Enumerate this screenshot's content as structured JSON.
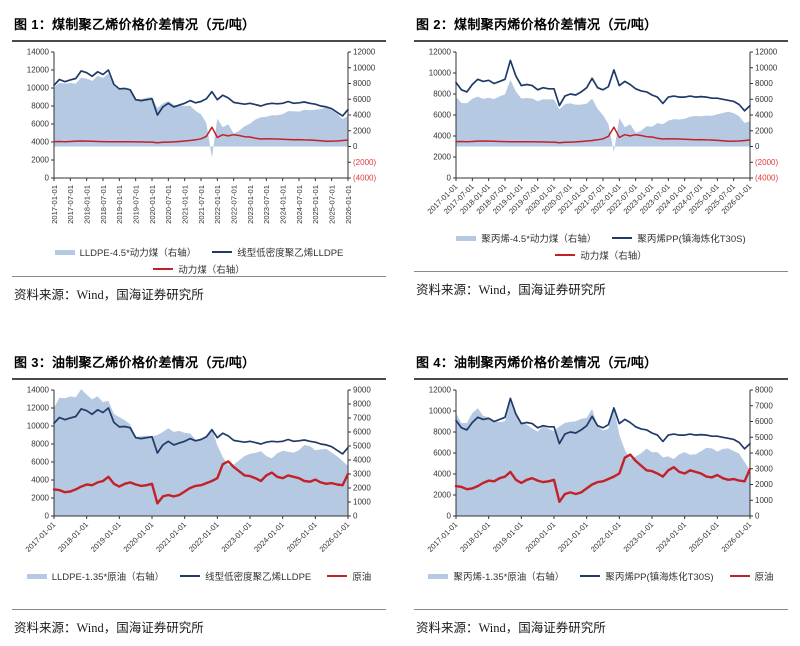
{
  "page": {
    "background": "#ffffff"
  },
  "colors": {
    "area": "#b6c9e2",
    "navy": "#1f3a68",
    "red": "#c22127",
    "axis": "#333333",
    "tick_text": "#333333",
    "negative_tick_text": "#e03b3b",
    "title_text": "#000000",
    "rule_dark": "#4a4a4a",
    "rule_light": "#8a8a8a"
  },
  "figures": [
    {
      "title": "图 1：煤制聚乙烯价格价差情况（元/吨）",
      "source": "资料来源：Wind，国海证券研究所"
    },
    {
      "title": "图 2：煤制聚丙烯价格价差情况（元/吨）",
      "source": "资料来源：Wind，国海证券研究所"
    },
    {
      "title": "图 3：油制聚乙烯价格价差情况（元/吨）",
      "source": "资料来源：Wind，国海证券研究所"
    },
    {
      "title": "图 4：油制聚丙烯价格价差情况（元/吨）",
      "source": "资料来源：Wind，国海证券研究所"
    }
  ],
  "chart_data": [
    {
      "type": "area+line combo",
      "title": "图 1：煤制聚乙烯价格价差情况（元/吨）",
      "x_unit": "months since 2017-01",
      "x": [
        0,
        2,
        4,
        6,
        8,
        10,
        12,
        14,
        16,
        18,
        20,
        22,
        24,
        26,
        28,
        30,
        32,
        34,
        36,
        38,
        40,
        42,
        44,
        46,
        48,
        50,
        52,
        54,
        56,
        58,
        60,
        62,
        64,
        66,
        68,
        70,
        72,
        74,
        76,
        78,
        80,
        82,
        84,
        86,
        88,
        90,
        92,
        94,
        96,
        98,
        100,
        102,
        104,
        106,
        108
      ],
      "x_tick_step_months": 6,
      "x_label_rotation": 90,
      "x_tick_labels": [
        "2017-01-01",
        "2017-07-01",
        "2018-01-01",
        "2018-07-01",
        "2019-01-01",
        "2019-07-01",
        "2020-01-01",
        "2020-07-01",
        "2021-01-01",
        "2021-07-01",
        "2022-01-01",
        "2022-07-01",
        "2023-01-01",
        "2023-07-01",
        "2024-01-01",
        "2024-07-01",
        "2025-01-01",
        "2025-07-01",
        "2026-01-01"
      ],
      "left_axis": {
        "labels": [
          "0",
          "2000",
          "4000",
          "6000",
          "8000",
          "10000",
          "12000",
          "14000"
        ]
      },
      "right_axis": {
        "labels": [
          "(4000)",
          "(2000)",
          "0",
          "2000",
          "4000",
          "6000",
          "8000",
          "10000",
          "12000"
        ]
      },
      "series": [
        {
          "name": "LLDPE-4.5*动力煤（右轴）",
          "type": "area",
          "axis": "right",
          "color": "area",
          "spread_of": [
            1,
            2
          ],
          "multiplier": 4.5
        },
        {
          "name": "线型低密度聚乙烯LLDPE",
          "type": "line",
          "axis": "left",
          "color": "navy",
          "width": 1.7,
          "values": [
            10300,
            10950,
            10700,
            10900,
            11050,
            11900,
            11700,
            11300,
            11800,
            11500,
            12000,
            10400,
            9900,
            9950,
            9800,
            8700,
            8600,
            8700,
            8800,
            7000,
            7900,
            8300,
            7900,
            8100,
            8300,
            8600,
            8350,
            8500,
            8800,
            9600,
            8700,
            9200,
            8900,
            8400,
            8300,
            8200,
            8300,
            8150,
            8000,
            8200,
            8300,
            8250,
            8300,
            8500,
            8300,
            8350,
            8450,
            8300,
            8200,
            8000,
            7900,
            7700,
            7300,
            6900,
            7600
          ]
        },
        {
          "name": "动力煤（右轴）",
          "type": "line",
          "axis": "right",
          "color": "red",
          "width": 1.5,
          "values": [
            620,
            640,
            600,
            630,
            680,
            700,
            690,
            660,
            630,
            620,
            610,
            600,
            600,
            610,
            600,
            590,
            580,
            560,
            560,
            480,
            540,
            560,
            580,
            640,
            700,
            760,
            850,
            980,
            1300,
            2450,
            1150,
            1500,
            1350,
            1500,
            1400,
            1250,
            1200,
            1050,
            950,
            980,
            960,
            950,
            930,
            890,
            850,
            870,
            840,
            820,
            780,
            720,
            660,
            680,
            700,
            760,
            820
          ]
        }
      ],
      "legend_rows": [
        [
          0,
          1
        ],
        [
          2
        ]
      ]
    },
    {
      "type": "area+line combo",
      "title": "图 2：煤制聚丙烯价格价差情况（元/吨）",
      "x_unit": "months since 2017-01",
      "x": [
        0,
        2,
        4,
        6,
        8,
        10,
        12,
        14,
        16,
        18,
        20,
        22,
        24,
        26,
        28,
        30,
        32,
        34,
        36,
        38,
        40,
        42,
        44,
        46,
        48,
        50,
        52,
        54,
        56,
        58,
        60,
        62,
        64,
        66,
        68,
        70,
        72,
        74,
        76,
        78,
        80,
        82,
        84,
        86,
        88,
        90,
        92,
        94,
        96,
        98,
        100,
        102,
        104,
        106,
        108
      ],
      "x_tick_step_months": 6,
      "x_label_rotation": 45,
      "x_tick_labels": [
        "2017-01-01",
        "2017-07-01",
        "2018-01-01",
        "2018-07-01",
        "2019-01-01",
        "2019-07-01",
        "2020-01-01",
        "2020-07-01",
        "2021-01-01",
        "2021-07-01",
        "2022-01-01",
        "2022-07-01",
        "2023-01-01",
        "2023-07-01",
        "2024-01-01",
        "2024-07-01",
        "2025-01-01",
        "2025-07-01",
        "2026-01-01"
      ],
      "left_axis": {
        "labels": [
          "0",
          "2000",
          "4000",
          "6000",
          "8000",
          "10000",
          "12000"
        ]
      },
      "right_axis": {
        "labels": [
          "(4000)",
          "(2000)",
          "0",
          "2000",
          "4000",
          "6000",
          "8000",
          "10000",
          "12000"
        ]
      },
      "series": [
        {
          "name": "聚丙烯-4.5*动力煤（右轴）",
          "type": "area",
          "axis": "right",
          "color": "area",
          "spread_of": [
            1,
            2
          ],
          "multiplier": 4.5
        },
        {
          "name": "聚丙烯PP(镇海炼化T30S)",
          "type": "line",
          "axis": "left",
          "color": "navy",
          "width": 1.7,
          "values": [
            9100,
            8400,
            8200,
            8900,
            9400,
            9200,
            9300,
            9000,
            9200,
            9400,
            11200,
            9700,
            8800,
            8900,
            8800,
            8400,
            8600,
            8500,
            8500,
            6900,
            7800,
            8000,
            7900,
            8200,
            8600,
            9500,
            8600,
            8400,
            8700,
            10300,
            8800,
            9200,
            8900,
            8500,
            8300,
            8200,
            7900,
            7700,
            7100,
            7700,
            7800,
            7700,
            7700,
            7800,
            7700,
            7750,
            7700,
            7600,
            7600,
            7500,
            7400,
            7300,
            7000,
            6400,
            6900
          ]
        },
        {
          "name": "动力煤（右轴）",
          "type": "line",
          "axis": "right",
          "color": "red",
          "width": 1.5,
          "values": [
            620,
            640,
            600,
            630,
            680,
            700,
            690,
            660,
            630,
            620,
            610,
            600,
            600,
            610,
            600,
            590,
            580,
            560,
            560,
            480,
            540,
            560,
            580,
            640,
            700,
            760,
            850,
            980,
            1300,
            2450,
            1150,
            1500,
            1350,
            1500,
            1400,
            1250,
            1200,
            1050,
            950,
            980,
            960,
            950,
            930,
            890,
            850,
            870,
            840,
            820,
            780,
            720,
            660,
            680,
            700,
            760,
            820
          ]
        }
      ],
      "legend_rows": [
        [
          0,
          1
        ],
        [
          2
        ]
      ]
    },
    {
      "type": "area+line combo",
      "title": "图 3：油制聚乙烯价格价差情况（元/吨）",
      "x_unit": "months since 2017-01",
      "x": [
        0,
        2,
        4,
        6,
        8,
        10,
        12,
        14,
        16,
        18,
        20,
        22,
        24,
        26,
        28,
        30,
        32,
        34,
        36,
        38,
        40,
        42,
        44,
        46,
        48,
        50,
        52,
        54,
        56,
        58,
        60,
        62,
        64,
        66,
        68,
        70,
        72,
        74,
        76,
        78,
        80,
        82,
        84,
        86,
        88,
        90,
        92,
        94,
        96,
        98,
        100,
        102,
        104,
        106,
        108
      ],
      "x_tick_step_months": 12,
      "x_label_rotation": 45,
      "x_tick_labels": [
        "2017-01-01",
        "2018-01-01",
        "2019-01-01",
        "2020-01-01",
        "2021-01-01",
        "2022-01-01",
        "2023-01-01",
        "2024-01-01",
        "2025-01-01",
        "2026-01-01"
      ],
      "left_axis": {
        "labels": [
          "0",
          "2000",
          "4000",
          "6000",
          "8000",
          "10000",
          "12000",
          "14000"
        ]
      },
      "right_axis": {
        "labels": [
          "0",
          "1000",
          "2000",
          "3000",
          "4000",
          "5000",
          "6000",
          "7000",
          "8000",
          "9000"
        ]
      },
      "series": [
        {
          "name": "LLDPE-1.35*原油（右轴）",
          "type": "area",
          "axis": "right",
          "color": "area",
          "spread_of": [
            1,
            2
          ],
          "multiplier": 1.35
        },
        {
          "name": "线型低密度聚乙烯LLDPE",
          "type": "line",
          "axis": "left",
          "color": "navy",
          "width": 1.7,
          "values": [
            10300,
            10950,
            10700,
            10900,
            11050,
            11900,
            11700,
            11300,
            11800,
            11500,
            12000,
            10400,
            9900,
            9950,
            9800,
            8700,
            8600,
            8700,
            8800,
            7000,
            7900,
            8300,
            7900,
            8100,
            8300,
            8600,
            8350,
            8500,
            8800,
            9600,
            8700,
            9200,
            8900,
            8400,
            8300,
            8200,
            8300,
            8150,
            8000,
            8200,
            8300,
            8250,
            8300,
            8500,
            8300,
            8350,
            8450,
            8300,
            8200,
            8000,
            7900,
            7700,
            7300,
            6900,
            7600
          ]
        },
        {
          "name": "原油",
          "type": "line",
          "axis": "right",
          "color": "red",
          "width": 2.4,
          "values": [
            1900,
            1850,
            1700,
            1750,
            1900,
            2100,
            2250,
            2200,
            2400,
            2500,
            2800,
            2300,
            2100,
            2300,
            2400,
            2250,
            2150,
            2200,
            2300,
            900,
            1400,
            1500,
            1400,
            1500,
            1750,
            2000,
            2150,
            2200,
            2350,
            2500,
            2700,
            3700,
            3900,
            3500,
            3200,
            2900,
            2850,
            2700,
            2500,
            2900,
            3100,
            2800,
            2700,
            2900,
            2800,
            2700,
            2500,
            2450,
            2600,
            2400,
            2300,
            2350,
            2250,
            2200,
            3000
          ]
        }
      ],
      "legend_rows": [
        [
          0,
          1,
          2
        ]
      ]
    },
    {
      "type": "area+line combo",
      "title": "图 4：油制聚丙烯价格价差情况（元/吨）",
      "x_unit": "months since 2017-01",
      "x": [
        0,
        2,
        4,
        6,
        8,
        10,
        12,
        14,
        16,
        18,
        20,
        22,
        24,
        26,
        28,
        30,
        32,
        34,
        36,
        38,
        40,
        42,
        44,
        46,
        48,
        50,
        52,
        54,
        56,
        58,
        60,
        62,
        64,
        66,
        68,
        70,
        72,
        74,
        76,
        78,
        80,
        82,
        84,
        86,
        88,
        90,
        92,
        94,
        96,
        98,
        100,
        102,
        104,
        106,
        108
      ],
      "x_tick_step_months": 12,
      "x_label_rotation": 45,
      "x_tick_labels": [
        "2017-01-01",
        "2018-01-01",
        "2019-01-01",
        "2020-01-01",
        "2021-01-01",
        "2022-01-01",
        "2023-01-01",
        "2024-01-01",
        "2025-01-01",
        "2026-01-01"
      ],
      "left_axis": {
        "labels": [
          "0",
          "2000",
          "4000",
          "6000",
          "8000",
          "10000",
          "12000"
        ]
      },
      "right_axis": {
        "labels": [
          "0",
          "1000",
          "2000",
          "3000",
          "4000",
          "5000",
          "6000",
          "7000",
          "8000"
        ]
      },
      "series": [
        {
          "name": "聚丙烯-1.35*原油（右轴）",
          "type": "area",
          "axis": "right",
          "color": "area",
          "spread_of": [
            1,
            2
          ],
          "multiplier": 1.35
        },
        {
          "name": "聚丙烯PP(镇海炼化T30S)",
          "type": "line",
          "axis": "left",
          "color": "navy",
          "width": 1.7,
          "values": [
            9100,
            8400,
            8200,
            8900,
            9400,
            9200,
            9300,
            9000,
            9200,
            9400,
            11200,
            9700,
            8800,
            8900,
            8800,
            8400,
            8600,
            8500,
            8500,
            6900,
            7800,
            8000,
            7900,
            8200,
            8600,
            9500,
            8600,
            8400,
            8700,
            10300,
            8800,
            9200,
            8900,
            8500,
            8300,
            8200,
            7900,
            7700,
            7100,
            7700,
            7800,
            7700,
            7700,
            7800,
            7700,
            7750,
            7700,
            7600,
            7600,
            7500,
            7400,
            7300,
            7000,
            6400,
            6900
          ]
        },
        {
          "name": "原油",
          "type": "line",
          "axis": "right",
          "color": "red",
          "width": 2.4,
          "values": [
            1900,
            1850,
            1700,
            1750,
            1900,
            2100,
            2250,
            2200,
            2400,
            2500,
            2800,
            2300,
            2100,
            2300,
            2400,
            2250,
            2150,
            2200,
            2300,
            900,
            1400,
            1500,
            1400,
            1500,
            1750,
            2000,
            2150,
            2200,
            2350,
            2500,
            2700,
            3700,
            3900,
            3500,
            3200,
            2900,
            2850,
            2700,
            2500,
            2900,
            3100,
            2800,
            2700,
            2900,
            2800,
            2700,
            2500,
            2450,
            2600,
            2400,
            2300,
            2350,
            2250,
            2200,
            3000
          ]
        }
      ],
      "legend_rows": [
        [
          0,
          1,
          2
        ]
      ]
    }
  ]
}
